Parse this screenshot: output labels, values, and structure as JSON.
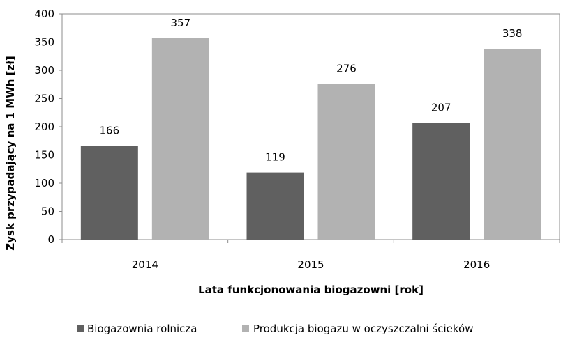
{
  "chart_data": {
    "type": "bar",
    "categories": [
      "2014",
      "2015",
      "2016"
    ],
    "series": [
      {
        "name": "Biogazownia rolnicza",
        "values": [
          166,
          119,
          207
        ],
        "color": "#606060"
      },
      {
        "name": "Produkcja biogazu w oczyszczalni ścieków",
        "values": [
          357,
          276,
          338
        ],
        "color": "#b2b2b2"
      }
    ],
    "data_labels": [
      [
        "166",
        "119",
        "207"
      ],
      [
        "357",
        "276",
        "338"
      ]
    ],
    "title": "",
    "xlabel": "Lata funkcjonowania biogazowni [rok]",
    "ylabel": "Zysk przypadający na 1 MWh [zł]",
    "ylim": [
      0,
      400
    ],
    "yticks": [
      0,
      50,
      100,
      150,
      200,
      250,
      300,
      350,
      400
    ],
    "grid": false,
    "legend_position": "bottom"
  }
}
